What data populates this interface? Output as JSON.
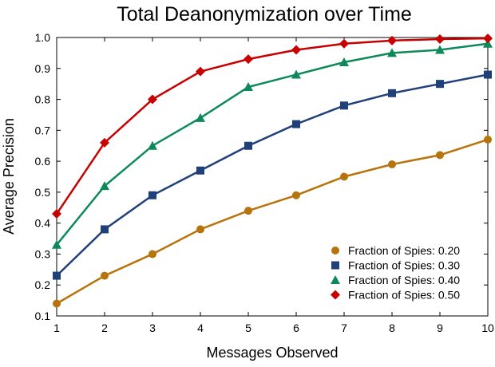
{
  "chart_data": {
    "type": "line",
    "title": "Total Deanonymization over Time",
    "xlabel": "Messages Observed",
    "ylabel": "Average Precision",
    "x": [
      1,
      2,
      3,
      4,
      5,
      6,
      7,
      8,
      9,
      10
    ],
    "xlim": [
      1,
      10
    ],
    "ylim": [
      0.1,
      1.0
    ],
    "xticks": [
      "1",
      "2",
      "3",
      "4",
      "5",
      "6",
      "7",
      "8",
      "9",
      "10"
    ],
    "yticks": [
      "0.1",
      "0.2",
      "0.3",
      "0.4",
      "0.5",
      "0.6",
      "0.7",
      "0.8",
      "0.9",
      "1.0"
    ],
    "grid": false,
    "legend_position": "bottom-right",
    "series": [
      {
        "name": "Fraction of Spies: 0.20",
        "color": "#B8740C",
        "marker": "circle",
        "values": [
          0.14,
          0.23,
          0.3,
          0.38,
          0.44,
          0.49,
          0.55,
          0.59,
          0.62,
          0.67
        ]
      },
      {
        "name": "Fraction of Spies: 0.30",
        "color": "#20407A",
        "marker": "square",
        "values": [
          0.23,
          0.38,
          0.49,
          0.57,
          0.65,
          0.72,
          0.78,
          0.82,
          0.85,
          0.88
        ]
      },
      {
        "name": "Fraction of Spies: 0.40",
        "color": "#0E8A5A",
        "marker": "triangle",
        "values": [
          0.33,
          0.52,
          0.65,
          0.74,
          0.84,
          0.88,
          0.92,
          0.95,
          0.96,
          0.98
        ]
      },
      {
        "name": "Fraction of Spies: 0.50",
        "color": "#C80000",
        "marker": "diamond",
        "values": [
          0.43,
          0.66,
          0.8,
          0.89,
          0.93,
          0.96,
          0.98,
          0.99,
          0.995,
          0.997
        ]
      }
    ]
  }
}
